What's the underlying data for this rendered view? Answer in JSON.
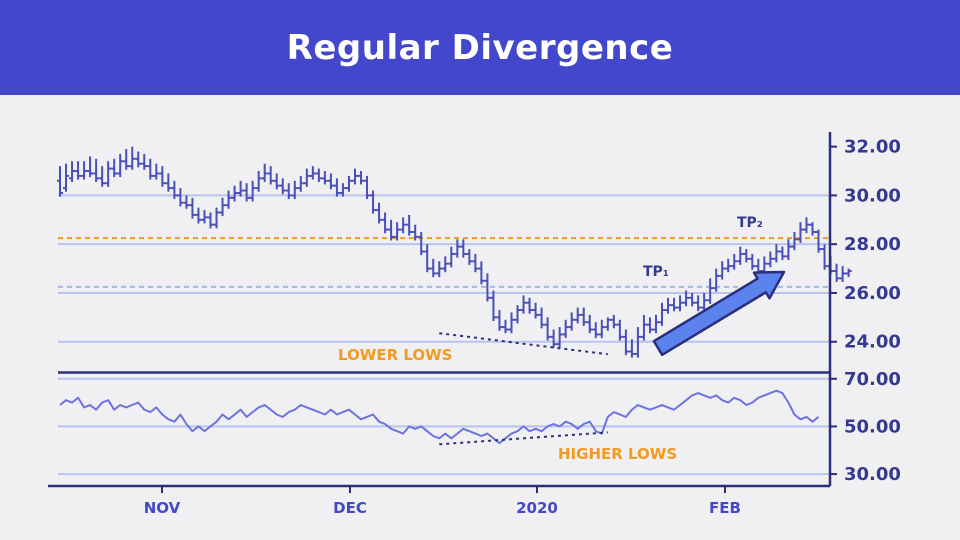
{
  "title": "Regular Divergence",
  "colors": {
    "header_bg": "#4347cc",
    "price_bars": "#4a4fb8",
    "rsi_line": "#6b73e0",
    "axis": "#2b2f7a",
    "grid": "#b8c3f0",
    "resistance": "#f39a21",
    "arrow_fill": "#5c82ee"
  },
  "annotations": {
    "lower_lows": "LOWER LOWS",
    "higher_lows": "HIGHER LOWS",
    "tp1": "TP₁",
    "tp2": "TP₂"
  },
  "chart_data": [
    {
      "type": "ohlc",
      "x_ticks": [
        "NOV",
        "DEC",
        "2020",
        "FEB"
      ],
      "y_ticks": [
        "24.00",
        "26.00",
        "28.00",
        "30.00",
        "32.00"
      ],
      "ylim": [
        22.8,
        32.6
      ],
      "grid": true,
      "grid_values": [
        24,
        26,
        28,
        30
      ],
      "resistance_level": 28.25,
      "support_level": 26.25,
      "lower_lows_trendline": [
        [
          63,
          24.35
        ],
        [
          89,
          23.65
        ]
      ],
      "bars": [
        [
          30.6,
          30.1,
          31.2
        ],
        [
          30.3,
          30.8,
          31.3
        ],
        [
          30.7,
          31.0,
          31.4
        ],
        [
          31.0,
          30.8,
          31.4
        ],
        [
          30.8,
          31.0,
          31.4
        ],
        [
          31.0,
          30.9,
          31.6
        ],
        [
          30.9,
          30.7,
          31.5
        ],
        [
          30.7,
          30.5,
          31.2
        ],
        [
          30.5,
          31.1,
          31.4
        ],
        [
          31.1,
          30.9,
          31.5
        ],
        [
          30.9,
          31.4,
          31.7
        ],
        [
          31.4,
          31.2,
          31.9
        ],
        [
          31.2,
          31.5,
          32.0
        ],
        [
          31.5,
          31.3,
          31.8
        ],
        [
          31.3,
          31.2,
          31.7
        ],
        [
          31.2,
          30.8,
          31.5
        ],
        [
          30.8,
          30.9,
          31.3
        ],
        [
          30.9,
          30.5,
          31.2
        ],
        [
          30.5,
          30.3,
          30.9
        ],
        [
          30.3,
          30.0,
          30.6
        ],
        [
          30.0,
          29.7,
          30.3
        ],
        [
          29.7,
          29.6,
          30.0
        ],
        [
          29.6,
          29.2,
          29.9
        ],
        [
          29.2,
          29.0,
          29.5
        ],
        [
          29.0,
          29.1,
          29.4
        ],
        [
          29.1,
          28.8,
          29.3
        ],
        [
          28.8,
          29.3,
          29.5
        ],
        [
          29.3,
          29.6,
          29.9
        ],
        [
          29.6,
          29.9,
          30.2
        ],
        [
          29.9,
          30.1,
          30.4
        ],
        [
          30.1,
          30.2,
          30.6
        ],
        [
          30.2,
          29.9,
          30.5
        ],
        [
          29.9,
          30.3,
          30.6
        ],
        [
          30.3,
          30.7,
          31.0
        ],
        [
          30.7,
          30.9,
          31.3
        ],
        [
          30.9,
          30.6,
          31.2
        ],
        [
          30.6,
          30.4,
          30.9
        ],
        [
          30.4,
          30.2,
          30.7
        ],
        [
          30.2,
          30.0,
          30.5
        ],
        [
          30.0,
          30.3,
          30.6
        ],
        [
          30.3,
          30.5,
          30.8
        ],
        [
          30.5,
          30.8,
          31.1
        ],
        [
          30.8,
          30.9,
          31.2
        ],
        [
          30.9,
          30.7,
          31.1
        ],
        [
          30.7,
          30.6,
          31.0
        ],
        [
          30.6,
          30.4,
          30.9
        ],
        [
          30.4,
          30.1,
          30.7
        ],
        [
          30.1,
          30.3,
          30.5
        ],
        [
          30.3,
          30.6,
          30.8
        ],
        [
          30.6,
          30.8,
          31.1
        ],
        [
          30.8,
          30.6,
          31.0
        ],
        [
          30.6,
          30.0,
          30.8
        ],
        [
          30.0,
          29.4,
          30.2
        ],
        [
          29.4,
          29.0,
          29.7
        ],
        [
          29.0,
          28.6,
          29.3
        ],
        [
          28.6,
          28.3,
          29.0
        ],
        [
          28.3,
          28.6,
          28.9
        ],
        [
          28.6,
          28.8,
          29.1
        ],
        [
          28.8,
          28.5,
          29.2
        ],
        [
          28.5,
          28.3,
          28.8
        ],
        [
          28.3,
          27.7,
          28.5
        ],
        [
          27.7,
          27.0,
          28.0
        ],
        [
          27.0,
          26.8,
          27.4
        ],
        [
          26.8,
          27.0,
          27.3
        ],
        [
          27.0,
          27.2,
          27.5
        ],
        [
          27.2,
          27.6,
          27.9
        ],
        [
          27.6,
          27.9,
          28.2
        ],
        [
          27.9,
          27.6,
          28.2
        ],
        [
          27.6,
          27.3,
          27.8
        ],
        [
          27.3,
          27.0,
          27.6
        ],
        [
          27.0,
          26.5,
          27.3
        ],
        [
          26.5,
          25.8,
          26.8
        ],
        [
          25.8,
          25.0,
          26.1
        ],
        [
          25.0,
          24.6,
          25.3
        ],
        [
          24.6,
          24.5,
          24.9
        ],
        [
          24.5,
          24.9,
          25.2
        ],
        [
          24.9,
          25.3,
          25.5
        ],
        [
          25.3,
          25.6,
          25.9
        ],
        [
          25.6,
          25.3,
          25.8
        ],
        [
          25.3,
          25.1,
          25.6
        ],
        [
          25.1,
          24.7,
          25.4
        ],
        [
          24.7,
          24.2,
          25.0
        ],
        [
          24.2,
          23.9,
          24.5
        ],
        [
          23.9,
          24.3,
          24.6
        ],
        [
          24.3,
          24.6,
          24.9
        ],
        [
          24.6,
          24.9,
          25.2
        ],
        [
          24.9,
          25.1,
          25.4
        ],
        [
          25.1,
          24.8,
          25.4
        ],
        [
          24.8,
          24.5,
          25.1
        ],
        [
          24.5,
          24.3,
          24.8
        ],
        [
          24.3,
          24.6,
          24.9
        ],
        [
          24.6,
          24.9,
          25.0
        ],
        [
          24.9,
          24.7,
          25.1
        ],
        [
          24.7,
          24.2,
          24.9
        ],
        [
          24.2,
          23.6,
          24.5
        ],
        [
          23.6,
          23.5,
          24.1
        ],
        [
          23.5,
          24.2,
          24.6
        ],
        [
          24.2,
          24.7,
          25.1
        ],
        [
          24.7,
          24.5,
          25.0
        ],
        [
          24.5,
          24.8,
          25.1
        ],
        [
          24.8,
          25.3,
          25.6
        ],
        [
          25.3,
          25.5,
          25.8
        ],
        [
          25.5,
          25.4,
          25.8
        ],
        [
          25.4,
          25.6,
          25.9
        ],
        [
          25.6,
          25.8,
          26.1
        ],
        [
          25.8,
          25.6,
          26.0
        ],
        [
          25.6,
          25.4,
          25.9
        ],
        [
          25.4,
          25.7,
          26.0
        ],
        [
          25.7,
          26.2,
          26.6
        ],
        [
          26.2,
          26.7,
          27.0
        ],
        [
          26.7,
          27.0,
          27.3
        ],
        [
          27.0,
          27.1,
          27.4
        ],
        [
          27.1,
          27.3,
          27.6
        ],
        [
          27.3,
          27.6,
          27.9
        ],
        [
          27.6,
          27.4,
          27.8
        ],
        [
          27.4,
          27.1,
          27.6
        ],
        [
          27.1,
          26.9,
          27.4
        ],
        [
          26.9,
          27.2,
          27.5
        ],
        [
          27.2,
          27.4,
          27.7
        ],
        [
          27.4,
          27.7,
          28.0
        ],
        [
          27.7,
          27.5,
          27.9
        ],
        [
          27.5,
          27.9,
          28.2
        ],
        [
          27.9,
          28.2,
          28.5
        ],
        [
          28.2,
          28.6,
          28.9
        ],
        [
          28.6,
          28.8,
          29.1
        ],
        [
          28.8,
          28.5,
          28.9
        ],
        [
          28.5,
          27.8,
          28.6
        ],
        [
          27.8,
          27.1,
          28.0
        ],
        [
          27.1,
          26.9,
          27.5
        ],
        [
          26.9,
          26.6,
          27.2
        ],
        [
          26.6,
          26.8,
          27.1
        ],
        [
          26.8,
          26.9,
          27.0
        ]
      ]
    },
    {
      "type": "line",
      "y_ticks": [
        "30.00",
        "50.00",
        "70.00"
      ],
      "ylim": [
        25,
        72
      ],
      "grid": true,
      "grid_values": [
        30,
        50,
        70
      ],
      "higher_lows_trendline": [
        [
          63,
          42.5
        ],
        [
          89,
          47.5
        ]
      ],
      "values": [
        59,
        61,
        60,
        62,
        58,
        59,
        57,
        60,
        61,
        57,
        59,
        58,
        59,
        60,
        57,
        56,
        58,
        55,
        53,
        52,
        55,
        51,
        48,
        50,
        48,
        50,
        52,
        55,
        53,
        55,
        57,
        54,
        56,
        58,
        59,
        57,
        55,
        54,
        56,
        57,
        59,
        58,
        57,
        56,
        55,
        57,
        55,
        56,
        57,
        55,
        53,
        54,
        55,
        52,
        51,
        49,
        48,
        47,
        50,
        49,
        50,
        48,
        46,
        45,
        47,
        45,
        47,
        49,
        48,
        47,
        46,
        47,
        45,
        43,
        45,
        47,
        48,
        50,
        48,
        49,
        48,
        50,
        51,
        50,
        52,
        51,
        49,
        51,
        52,
        48,
        47,
        54,
        56,
        55,
        54,
        57,
        59,
        58,
        57,
        58,
        59,
        58,
        57,
        59,
        61,
        63,
        64,
        63,
        62,
        63,
        61,
        60,
        62,
        61,
        59,
        60,
        62,
        63,
        64,
        65,
        64,
        60,
        55,
        53,
        54,
        52,
        54
      ]
    }
  ]
}
